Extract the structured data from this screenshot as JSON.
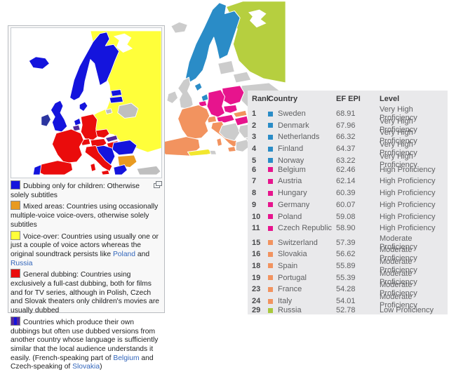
{
  "palette": {
    "table_bg": "#e9e9eb",
    "dub_blue": "#1414dd",
    "dub_blue_dark": "#2b35a0",
    "dub_yellow": "#ffff3a",
    "dub_red": "#ea0c0c",
    "dub_orange": "#e89a20",
    "dub_purple": "#552a9b",
    "dub_gray": "#bfbfbf",
    "epi_blue": "#2a8cc7",
    "epi_green": "#b6cf3f",
    "epi_magenta": "#e7148d",
    "epi_orange": "#f2935f",
    "epi_gray": "#cccccc",
    "epi_yellow": "#f2e72e"
  },
  "dubbing_panel": {
    "legend_items": [
      {
        "swatch": {
          "type": "solid",
          "color": "#1414dd"
        },
        "popup_icon": true,
        "segments": [
          {
            "text": "Dubbing only for children: Otherwise solely subtitles"
          }
        ]
      },
      {
        "swatch": {
          "type": "solid",
          "color": "#e89a20"
        },
        "segments": [
          {
            "text": "Mixed areas: Countries using occasionally multiple-voice voice-overs, otherwise solely subtitles"
          }
        ]
      },
      {
        "swatch": {
          "type": "solid",
          "color": "#ffff3a"
        },
        "segments": [
          {
            "text": "Voice-over: Countries using usually one or just a couple of voice actors whereas the original soundtrack persists like "
          },
          {
            "text": "Poland",
            "link": true
          },
          {
            "text": " and "
          },
          {
            "text": "Russia",
            "link": true
          }
        ]
      },
      {
        "swatch": {
          "type": "solid",
          "color": "#ea0c0c"
        },
        "segments": [
          {
            "text": "General dubbing: Countries using exclusively a full-cast dubbing, both for films and for TV series, although in Polish, Czech and Slovak theaters only children's movies are usually dubbed"
          }
        ]
      },
      {
        "swatch": {
          "type": "split",
          "color": "#552a9b",
          "color2": "#1414dd"
        },
        "segments": [
          {
            "text": "Countries which produce their own dubbings but often use dubbed versions from another country whose language is sufficiently similar that the local audience understands it easily. (French-speaking part of "
          },
          {
            "text": "Belgium",
            "link": true
          },
          {
            "text": " and Czech-speaking of "
          },
          {
            "text": "Slovakia",
            "link": true
          },
          {
            "text": ")"
          }
        ]
      }
    ]
  },
  "efepi_table": {
    "headers": {
      "rank": "Rank",
      "country": "Country",
      "score": "EF EPI",
      "level": "Level"
    },
    "level_colors": {
      "Very High Proficiency": "#2a8cc7",
      "High Proficiency": "#e7148d",
      "Moderate Proficiency": "#f2935f",
      "Low Proficiency": "#a8c83c"
    },
    "rows": [
      {
        "rank": "1",
        "country": "Sweden",
        "score": "68.91",
        "level": "Very High Proficiency"
      },
      {
        "rank": "2",
        "country": "Denmark",
        "score": "67.96",
        "level": "Very High Proficiency"
      },
      {
        "rank": "3",
        "country": "Netherlands",
        "score": "66.32",
        "level": "Very High Proficiency"
      },
      {
        "rank": "4",
        "country": "Finland",
        "score": "64.37",
        "level": "Very High Proficiency"
      },
      {
        "rank": "5",
        "country": "Norway",
        "score": "63.22",
        "level": "Very High Proficiency"
      },
      {
        "rank": "6",
        "country": "Belgium",
        "score": "62.46",
        "level": "High Proficiency"
      },
      {
        "rank": "7",
        "country": "Austria",
        "score": "62.14",
        "level": "High Proficiency"
      },
      {
        "rank": "8",
        "country": "Hungary",
        "score": "60.39",
        "level": "High Proficiency"
      },
      {
        "rank": "9",
        "country": "Germany",
        "score": "60.07",
        "level": "High Proficiency"
      },
      {
        "rank": "10",
        "country": "Poland",
        "score": "59.08",
        "level": "High Proficiency"
      },
      {
        "rank": "11",
        "country": "Czech Republic",
        "score": "58.90",
        "level": "High Proficiency"
      },
      {
        "rank": "15",
        "country": "Switzerland",
        "score": "57.39",
        "level": "Moderate Proficiency"
      },
      {
        "rank": "16",
        "country": "Slovakia",
        "score": "56.62",
        "level": "Moderate Proficiency"
      },
      {
        "rank": "18",
        "country": "Spain",
        "score": "55.89",
        "level": "Moderate Proficiency"
      },
      {
        "rank": "19",
        "country": "Portugal",
        "score": "55.39",
        "level": "Moderate Proficiency"
      },
      {
        "rank": "23",
        "country": "France",
        "score": "54.28",
        "level": "Moderate Proficiency"
      },
      {
        "rank": "24",
        "country": "Italy",
        "score": "54.01",
        "level": "Moderate Proficiency"
      },
      {
        "rank": "29",
        "country": "Russia",
        "score": "52.78",
        "level": "Low Proficiency"
      }
    ]
  }
}
